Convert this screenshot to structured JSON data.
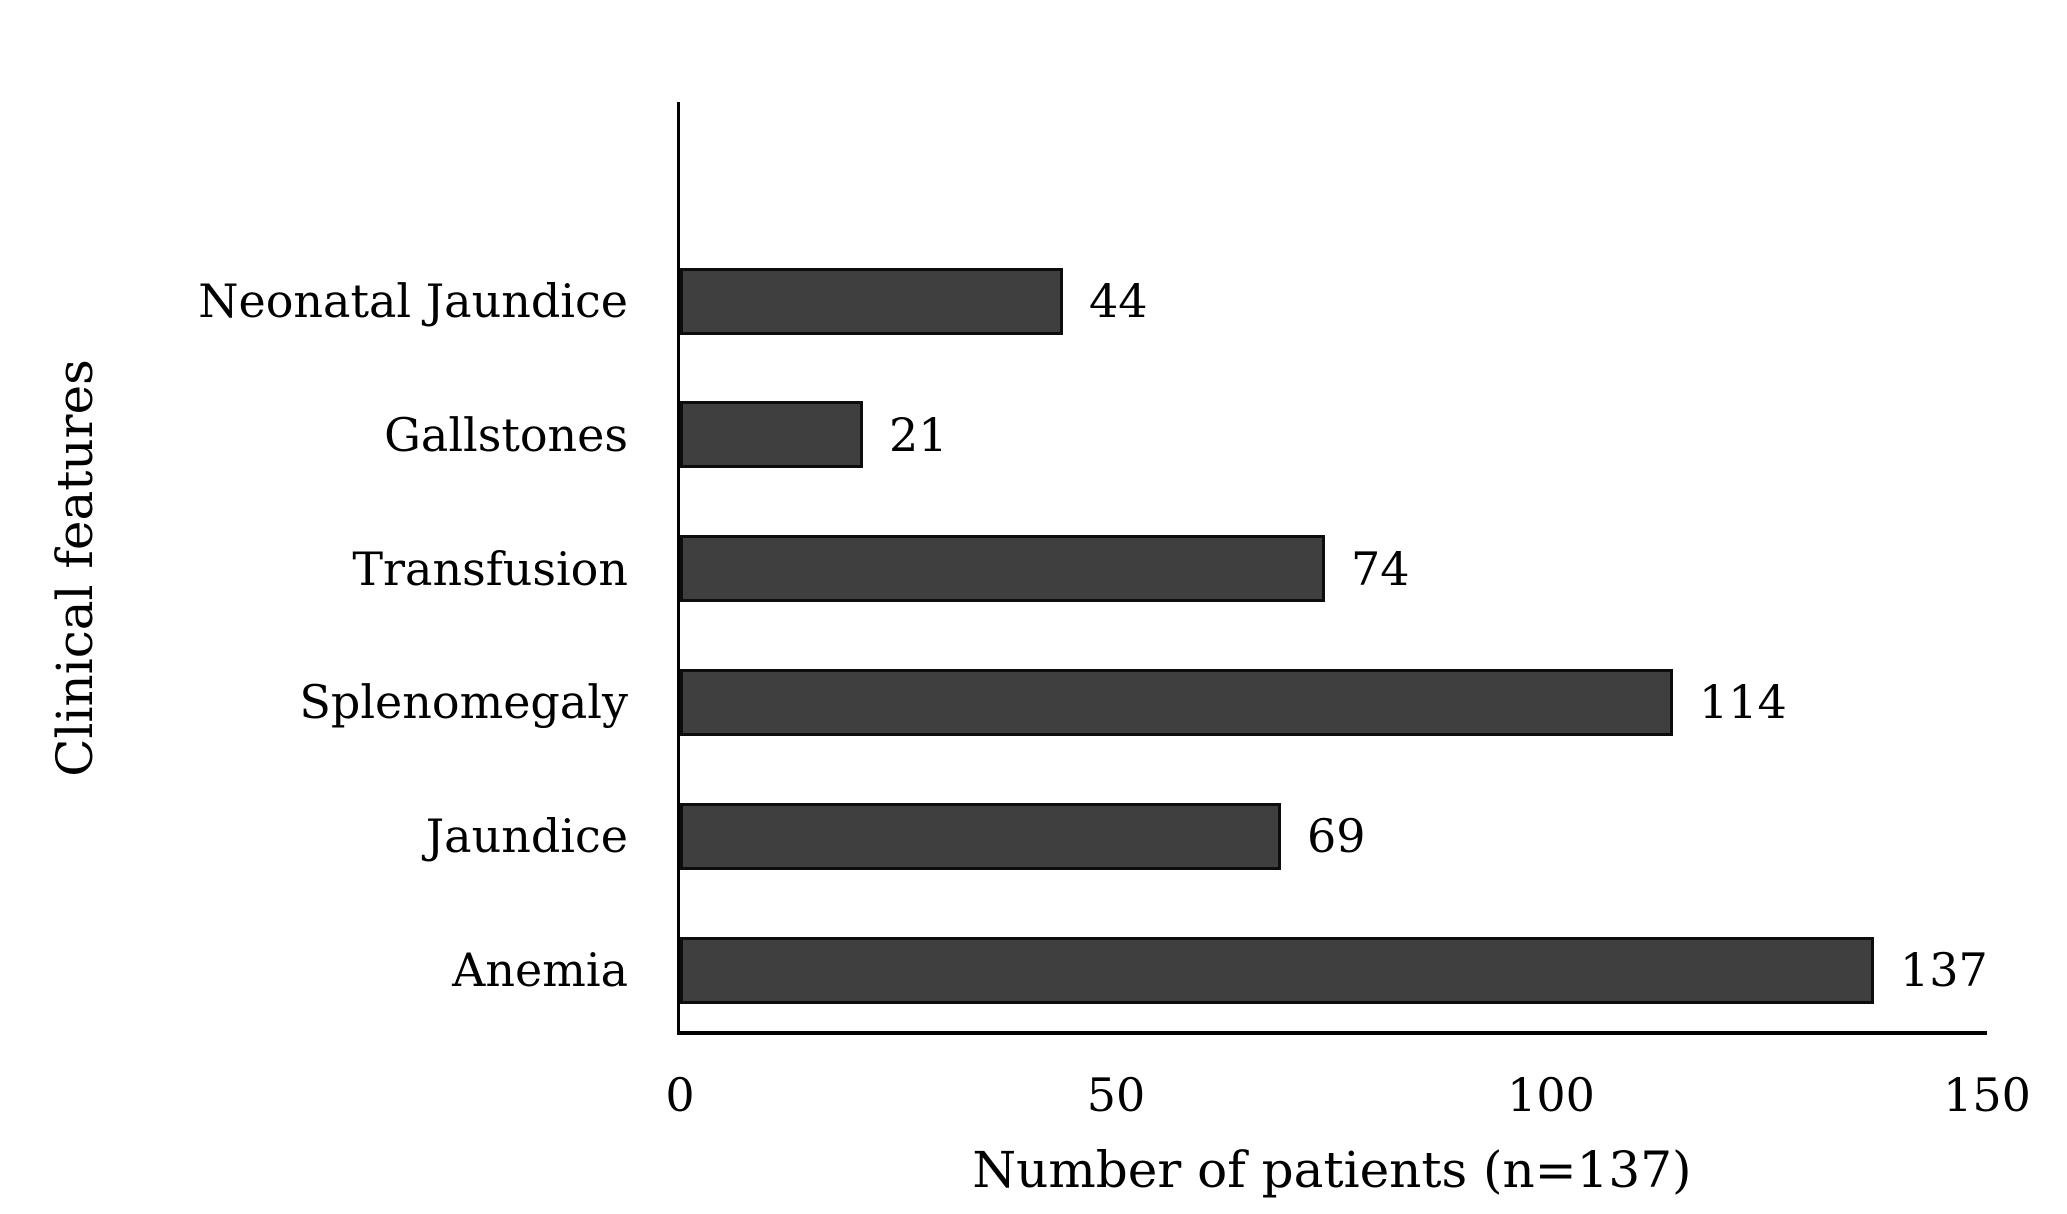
{
  "chart_data": {
    "type": "bar",
    "orientation": "horizontal",
    "title": "",
    "categories": [
      "Neonatal Jaundice",
      "Gallstones",
      "Transfusion",
      "Splenomegaly",
      "Jaundice",
      "Anemia"
    ],
    "values": [
      44,
      21,
      74,
      114,
      69,
      137
    ],
    "data_labels": [
      "44",
      "21",
      "74",
      "114",
      "69",
      "137"
    ],
    "xlabel": "Number of patients (n=137)",
    "ylabel": "Clinical features",
    "xlim": [
      0,
      150
    ],
    "xticks": [
      0,
      50,
      100,
      150
    ],
    "xtick_labels": [
      "0",
      "50",
      "100",
      "150"
    ],
    "grid": false,
    "legend": false,
    "bar_fill_color": "#3f3f3f",
    "bar_border_color": "#0d0d0d",
    "axis_color": "#000000",
    "text_color": "#000000",
    "background_color": "#ffffff"
  }
}
